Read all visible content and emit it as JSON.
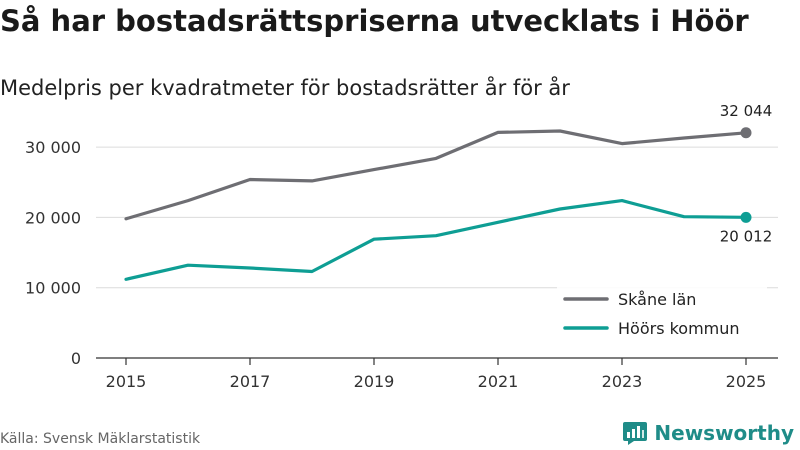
{
  "title": "Så har bostadsrättspriserna utvecklats i Höör",
  "subtitle": "Medelpris per kvadratmeter för bostadsrätter år för år",
  "source": "Källa: Svensk Mäklarstatistik",
  "brand": {
    "name": "Newsworthy",
    "color": "#1f8c88"
  },
  "chart_data": {
    "type": "line",
    "title": "Så har bostadsrättspriserna utvecklats i Höör",
    "subtitle": "Medelpris per kvadratmeter för bostadsrätter år för år",
    "xlabel": "",
    "ylabel": "",
    "x": [
      2015,
      2016,
      2017,
      2018,
      2019,
      2020,
      2021,
      2022,
      2023,
      2024,
      2025
    ],
    "xticks": [
      "2015",
      "2017",
      "2019",
      "2021",
      "2023",
      "2025"
    ],
    "xlim": [
      2015,
      2025
    ],
    "ylim": [
      0,
      35000
    ],
    "yticks": [
      {
        "value": 0,
        "label": "0"
      },
      {
        "value": 10000,
        "label": "10 000"
      },
      {
        "value": 20000,
        "label": "20 000"
      },
      {
        "value": 30000,
        "label": "30 000"
      }
    ],
    "grid": true,
    "legend_position": "right",
    "series": [
      {
        "name": "Skåne län",
        "color": "#6e6e73",
        "values": [
          19800,
          22400,
          25400,
          25200,
          26800,
          28400,
          32100,
          32300,
          30500,
          31300,
          32044
        ],
        "end_label": "32 044"
      },
      {
        "name": "Höörs kommun",
        "color": "#0e9e94",
        "values": [
          11200,
          13200,
          12800,
          12300,
          16900,
          17400,
          19300,
          21200,
          22400,
          20100,
          20012
        ],
        "end_label": "20 012"
      }
    ]
  }
}
